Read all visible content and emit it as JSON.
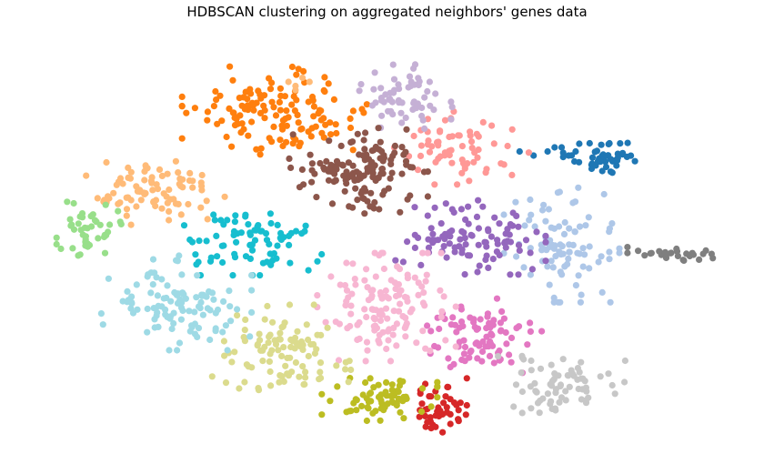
{
  "chart_data": {
    "type": "scatter",
    "title": "HDBSCAN clustering on aggregated neighbors' genes data",
    "xlabel": "",
    "ylabel": "",
    "axes_visible": false,
    "grid": false,
    "legend": "none",
    "xlim": [
      0,
      100
    ],
    "ylim": [
      0,
      100
    ],
    "series": [
      {
        "name": "cluster-blue",
        "color": "#1f77b4",
        "n": 45,
        "center": [
          81,
          71
        ],
        "spread": [
          3.5,
          3.0
        ],
        "seed": 11,
        "extra": [
          [
            69,
            73
          ],
          [
            71,
            72
          ],
          [
            73,
            73
          ],
          [
            75,
            74
          ],
          [
            77,
            73
          ],
          [
            79,
            75
          ],
          [
            74,
            74
          ],
          [
            76,
            72
          ]
        ]
      },
      {
        "name": "cluster-light-blue",
        "color": "#aec7e8",
        "n": 95,
        "center": [
          75,
          51
        ],
        "spread": [
          5.0,
          9.0
        ],
        "seed": 12,
        "extra": []
      },
      {
        "name": "cluster-orange",
        "color": "#ff7f0e",
        "n": 135,
        "center": [
          34,
          83
        ],
        "spread": [
          8.0,
          6.5
        ],
        "seed": 13,
        "extra": []
      },
      {
        "name": "cluster-light-orange",
        "color": "#ffbb78",
        "n": 85,
        "center": [
          17,
          63
        ],
        "spread": [
          6.0,
          5.0
        ],
        "seed": 14,
        "extra": [
          [
            36,
            90
          ],
          [
            37,
            89
          ],
          [
            38,
            91
          ],
          [
            39,
            90
          ],
          [
            37,
            88
          ]
        ]
      },
      {
        "name": "cluster-green",
        "color": "#98df8a",
        "n": 45,
        "center": [
          7.5,
          55
        ],
        "spread": [
          2.8,
          4.5
        ],
        "seed": 15,
        "extra": []
      },
      {
        "name": "cluster-red",
        "color": "#d62728",
        "n": 45,
        "center": [
          58,
          11
        ],
        "spread": [
          3.0,
          4.0
        ],
        "seed": 16,
        "extra": []
      },
      {
        "name": "cluster-salmon",
        "color": "#ff9896",
        "n": 65,
        "center": [
          61,
          74
        ],
        "spread": [
          6.0,
          5.5
        ],
        "seed": 17,
        "extra": []
      },
      {
        "name": "cluster-purple",
        "color": "#9467bd",
        "n": 100,
        "center": [
          62,
          52
        ],
        "spread": [
          6.5,
          5.5
        ],
        "seed": 18,
        "extra": []
      },
      {
        "name": "cluster-lavender",
        "color": "#c5b0d5",
        "n": 60,
        "center": [
          52,
          86
        ],
        "spread": [
          4.5,
          5.0
        ],
        "seed": 19,
        "extra": []
      },
      {
        "name": "cluster-brown",
        "color": "#8c564b",
        "n": 135,
        "center": [
          46,
          68
        ],
        "spread": [
          6.0,
          6.5
        ],
        "seed": 20,
        "extra": []
      },
      {
        "name": "cluster-magenta",
        "color": "#e377c2",
        "n": 85,
        "center": [
          64,
          28
        ],
        "spread": [
          5.0,
          5.5
        ],
        "seed": 21,
        "extra": []
      },
      {
        "name": "cluster-pink",
        "color": "#f7b6d2",
        "n": 130,
        "center": [
          50,
          35
        ],
        "spread": [
          6.0,
          8.0
        ],
        "seed": 22,
        "extra": []
      },
      {
        "name": "cluster-gray",
        "color": "#7f7f7f",
        "n": 30,
        "center": [
          91,
          48
        ],
        "spread": [
          4.0,
          1.0
        ],
        "seed": 23,
        "extra": []
      },
      {
        "name": "cluster-light-gray",
        "color": "#c7c7c7",
        "n": 70,
        "center": [
          75,
          16
        ],
        "spread": [
          5.5,
          5.0
        ],
        "seed": 24,
        "extra": []
      },
      {
        "name": "cluster-olive",
        "color": "#bcbd22",
        "n": 70,
        "center": [
          49,
          13
        ],
        "spread": [
          5.0,
          3.5
        ],
        "seed": 25,
        "extra": []
      },
      {
        "name": "cluster-khaki",
        "color": "#dbdb8d",
        "n": 100,
        "center": [
          35,
          24
        ],
        "spread": [
          6.0,
          7.0
        ],
        "seed": 26,
        "extra": []
      },
      {
        "name": "cluster-cyan",
        "color": "#17becf",
        "n": 80,
        "center": [
          31,
          51
        ],
        "spread": [
          6.0,
          5.0
        ],
        "seed": 27,
        "extra": []
      },
      {
        "name": "cluster-light-cyan",
        "color": "#9edae5",
        "n": 110,
        "center": [
          20,
          36
        ],
        "spread": [
          6.5,
          7.0
        ],
        "seed": 28,
        "extra": []
      }
    ]
  }
}
